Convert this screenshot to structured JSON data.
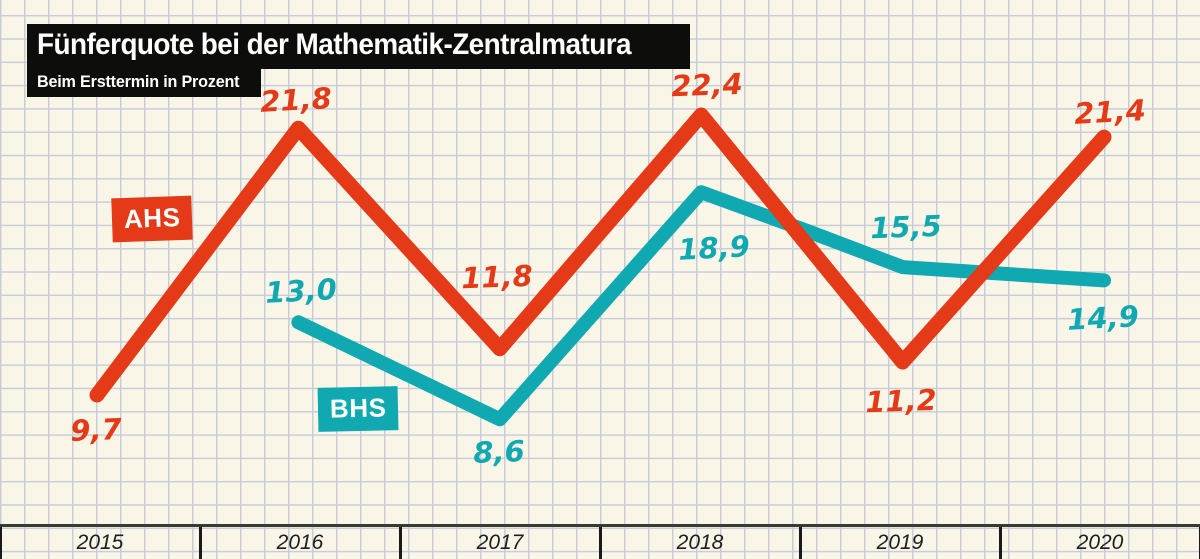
{
  "header": {
    "title": "Fünferquote bei der Mathematik-Zentralmatura",
    "subtitle": "Beim Ersttermin in Prozent"
  },
  "colors": {
    "background": "#f9f6e8",
    "grid": "#c7ccd9",
    "axis": "#3a392f",
    "tick": "#1a1a1a",
    "ahs": "#e43a18",
    "bhs": "#10a8b1",
    "header_bg": "#0d0d0c",
    "header_text": "#ffffff",
    "year_text": "#1e1e1e"
  },
  "series_chips": {
    "ahs": "AHS",
    "bhs": "BHS"
  },
  "x_axis": {
    "years": [
      "2015",
      "2016",
      "2017",
      "2018",
      "2019",
      "2020"
    ]
  },
  "chart_data": {
    "type": "line",
    "title": "Fünferquote bei der Mathematik-Zentralmatura",
    "subtitle": "Beim Ersttermin in Prozent",
    "unit": "Prozent",
    "categories": [
      2015,
      2016,
      2017,
      2018,
      2019,
      2020
    ],
    "series": [
      {
        "name": "AHS",
        "color": "#e43a18",
        "values": [
          9.7,
          21.8,
          11.8,
          22.4,
          11.2,
          21.4
        ],
        "labels": [
          "9,7",
          "21,8",
          "11,8",
          "22,4",
          "11,2",
          "21,4"
        ]
      },
      {
        "name": "BHS",
        "color": "#10a8b1",
        "values": [
          null,
          13.0,
          8.6,
          18.9,
          15.5,
          14.9
        ],
        "labels": [
          null,
          "13,0",
          "8,6",
          "18,9",
          "15,5",
          "14,9"
        ]
      }
    ],
    "grid": true,
    "legend_position": "on-chart-chips",
    "x_axis_style": "year cells separated by ticks below baseline",
    "value_labels_shown": true
  }
}
